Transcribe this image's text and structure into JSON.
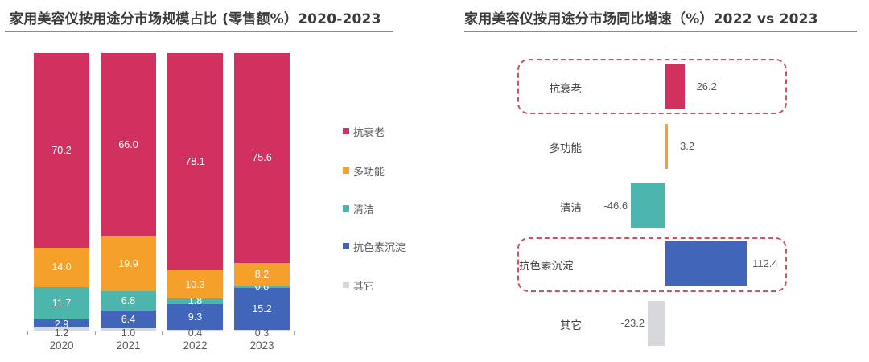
{
  "left": {
    "title": "家用美容仪按用途分市场规模占比 (零售额%）2020-2023"
  },
  "right": {
    "title": "家用美容仪按用途分市场同比增速（%）2022 vs 2023"
  },
  "colors": {
    "anti_aging": "#d1315e",
    "multi_function": "#f5a02b",
    "cleansing": "#4db6ac",
    "anti_pigment": "#4165b8",
    "other": "#d6d8db",
    "highlight_box": "#c9545d"
  },
  "legend": [
    "抗衰老",
    "多功能",
    "清洁",
    "抗色素沉淀",
    "其它"
  ],
  "chart_data": [
    {
      "type": "bar",
      "stacked": true,
      "title": "家用美容仪按用途分市场规模占比 (零售额%）2020-2023",
      "categories": [
        "2020",
        "2021",
        "2022",
        "2023"
      ],
      "series": [
        {
          "name": "抗衰老",
          "values": [
            70.2,
            66.0,
            78.1,
            75.6
          ]
        },
        {
          "name": "多功能",
          "values": [
            14.0,
            19.9,
            10.3,
            8.2
          ]
        },
        {
          "name": "清洁",
          "values": [
            11.7,
            6.8,
            1.8,
            0.8
          ]
        },
        {
          "name": "抗色素沉淀",
          "values": [
            2.9,
            6.4,
            9.3,
            15.2
          ]
        },
        {
          "name": "其它",
          "values": [
            1.2,
            1.0,
            0.4,
            0.3
          ]
        }
      ],
      "labels": [
        [
          "70.2",
          "66.0",
          "78.1",
          "75.6"
        ],
        [
          "14.0",
          "19.9",
          "10.3",
          "8.2"
        ],
        [
          "11.7",
          "6.8",
          "1.8",
          "0.8"
        ],
        [
          "2.9",
          "6.4",
          "9.3",
          "15.2"
        ],
        [
          "1.2",
          "1.0",
          "0.4",
          "0.3"
        ]
      ],
      "ylim": [
        0,
        100
      ],
      "xlabel": "",
      "ylabel": "",
      "grid": false,
      "legend_position": "right"
    },
    {
      "type": "bar",
      "orientation": "horizontal",
      "title": "家用美容仪按用途分市场同比增速（%）2022 vs 2023",
      "categories": [
        "抗衰老",
        "多功能",
        "清洁",
        "抗色素沉淀",
        "其它"
      ],
      "values": [
        26.2,
        3.2,
        -46.6,
        112.4,
        -23.2
      ],
      "labels": [
        "26.2",
        "3.2",
        "-46.6",
        "112.4",
        "-23.2"
      ],
      "highlighted": [
        "抗衰老",
        "抗色素沉淀"
      ],
      "xlabel": "",
      "ylabel": "",
      "grid": false
    }
  ]
}
